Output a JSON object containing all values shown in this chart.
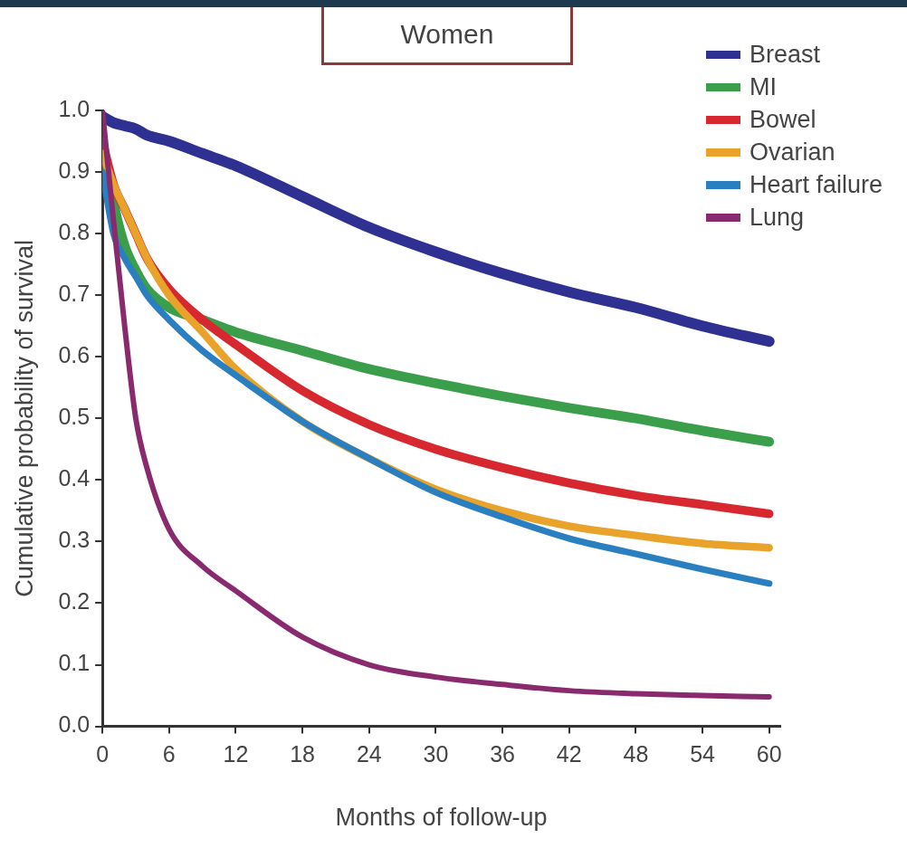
{
  "chart_data": {
    "type": "line",
    "title": "Women",
    "xlabel": "Months of follow-up",
    "ylabel": "Cumulative probability of survival",
    "xlim": [
      0,
      61
    ],
    "xticks": [
      0,
      6,
      12,
      18,
      24,
      30,
      36,
      42,
      48,
      54,
      60
    ],
    "ylim": [
      0,
      1
    ],
    "yticks": [
      {
        "value": 0,
        "label": "0.0"
      },
      0.1,
      0.2,
      0.3,
      0.4,
      0.5,
      0.6,
      0.7,
      0.8,
      0.9,
      {
        "value": 1,
        "label": "1.0"
      }
    ],
    "grid": false,
    "legend": "top right",
    "marker": "none",
    "line_style": "solid",
    "x": [
      0,
      1,
      2,
      3,
      4,
      6,
      9,
      12,
      18,
      24,
      30,
      36,
      42,
      48,
      54,
      60
    ],
    "series": [
      {
        "name": "Breast",
        "color": "#2e3192",
        "values": [
          0.99,
          0.98,
          0.975,
          0.97,
          0.96,
          0.95,
          0.93,
          0.91,
          0.86,
          0.81,
          0.77,
          0.735,
          0.705,
          0.68,
          0.65,
          0.625
        ]
      },
      {
        "name": "MI",
        "color": "#3a9e4a",
        "values": [
          0.95,
          0.85,
          0.78,
          0.74,
          0.71,
          0.68,
          0.66,
          0.64,
          0.61,
          0.58,
          0.557,
          0.536,
          0.517,
          0.5,
          0.48,
          0.462
        ]
      },
      {
        "name": "Bowel",
        "color": "#d7282f",
        "values": [
          0.95,
          0.88,
          0.84,
          0.8,
          0.76,
          0.71,
          0.66,
          0.62,
          0.545,
          0.49,
          0.45,
          0.42,
          0.395,
          0.375,
          0.36,
          0.345
        ]
      },
      {
        "name": "Ovarian",
        "color": "#e9a32a",
        "values": [
          0.93,
          0.88,
          0.84,
          0.8,
          0.76,
          0.7,
          0.64,
          0.58,
          0.495,
          0.435,
          0.385,
          0.35,
          0.325,
          0.31,
          0.297,
          0.29
        ]
      },
      {
        "name": "Heart failure",
        "color": "#2a7fc1",
        "values": [
          0.9,
          0.8,
          0.76,
          0.73,
          0.7,
          0.66,
          0.61,
          0.57,
          0.495,
          0.435,
          0.38,
          0.34,
          0.305,
          0.28,
          0.255,
          0.232
        ]
      },
      {
        "name": "Lung",
        "color": "#8a2a6e",
        "values": [
          1.0,
          0.82,
          0.65,
          0.5,
          0.42,
          0.32,
          0.26,
          0.22,
          0.145,
          0.1,
          0.08,
          0.068,
          0.058,
          0.053,
          0.05,
          0.048
        ]
      }
    ]
  }
}
